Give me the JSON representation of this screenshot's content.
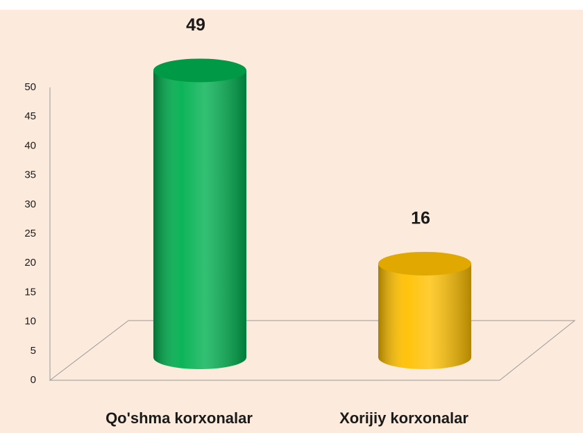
{
  "chart_data": {
    "type": "bar",
    "categories": [
      "Qo'shma korxonalar",
      "Xorijiy korxonalar"
    ],
    "values": [
      49,
      16
    ],
    "colors": [
      "#00b050",
      "#ffc000"
    ],
    "ylim": [
      0,
      50
    ],
    "yticks": [
      0,
      5,
      10,
      15,
      20,
      25,
      30,
      35,
      40,
      45,
      50
    ],
    "grid": false
  }
}
